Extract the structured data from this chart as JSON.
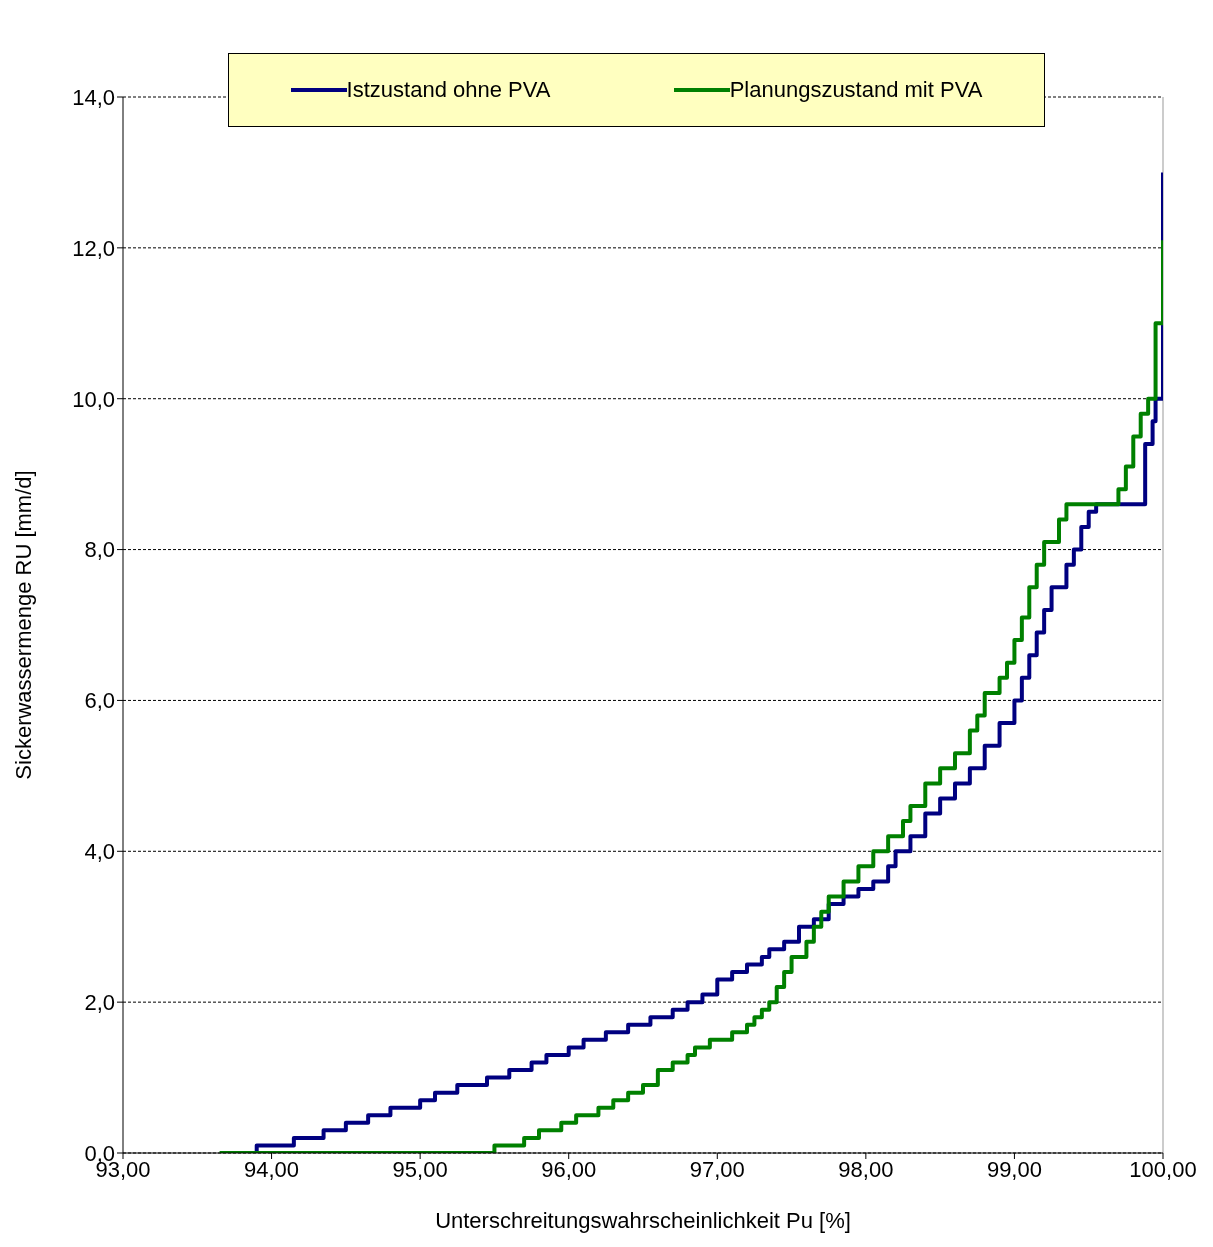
{
  "chart_data": {
    "type": "step",
    "xlabel": "Unterschreitungswahrscheinlichkeit Pu [%]",
    "ylabel": "Sickerwassermenge RU [mm/d]",
    "xlim": [
      93,
      100
    ],
    "xticks": [
      {
        "value": 93,
        "label": "93,00"
      },
      {
        "value": 94,
        "label": "94,00"
      },
      {
        "value": 95,
        "label": "95,00"
      },
      {
        "value": 96,
        "label": "96,00"
      },
      {
        "value": 97,
        "label": "97,00"
      },
      {
        "value": 98,
        "label": "98,00"
      },
      {
        "value": 99,
        "label": "99,00"
      },
      {
        "value": 100,
        "label": "100,00"
      }
    ],
    "ylim": [
      0,
      14
    ],
    "yticks": [
      {
        "value": 0,
        "label": "0,0"
      },
      {
        "value": 2,
        "label": "2,0"
      },
      {
        "value": 4,
        "label": "4,0"
      },
      {
        "value": 6,
        "label": "6,0"
      },
      {
        "value": 8,
        "label": "8,0"
      },
      {
        "value": 10,
        "label": "10,0"
      },
      {
        "value": 12,
        "label": "12,0"
      },
      {
        "value": 14,
        "label": "14,0"
      }
    ],
    "grid": "y",
    "legend": "top",
    "line_style": "solid",
    "marker": "none",
    "series": [
      {
        "name": "Istzustand ohne PVA",
        "color": "#000080",
        "x": [
          93.9,
          93.9,
          94.15,
          94.35,
          94.5,
          94.65,
          94.8,
          95.0,
          95.1,
          95.25,
          95.45,
          95.6,
          95.75,
          95.85,
          96.0,
          96.1,
          96.25,
          96.4,
          96.55,
          96.7,
          96.8,
          96.9,
          97.0,
          97.1,
          97.2,
          97.3,
          97.35,
          97.45,
          97.55,
          97.65,
          97.75,
          97.85,
          97.95,
          98.05,
          98.15,
          98.2,
          98.3,
          98.4,
          98.5,
          98.6,
          98.7,
          98.8,
          98.9,
          99.0,
          99.05,
          99.1,
          99.15,
          99.2,
          99.25,
          99.35,
          99.4,
          99.45,
          99.5,
          99.55,
          99.85,
          99.88,
          99.93,
          99.95,
          100.0
        ],
        "values": [
          0,
          0.1,
          0.2,
          0.3,
          0.4,
          0.5,
          0.6,
          0.7,
          0.8,
          0.9,
          1.0,
          1.1,
          1.2,
          1.3,
          1.4,
          1.5,
          1.6,
          1.7,
          1.8,
          1.9,
          2.0,
          2.1,
          2.3,
          2.4,
          2.5,
          2.6,
          2.7,
          2.8,
          3.0,
          3.1,
          3.3,
          3.4,
          3.5,
          3.6,
          3.8,
          4.0,
          4.2,
          4.5,
          4.7,
          4.9,
          5.1,
          5.4,
          5.7,
          6.0,
          6.3,
          6.6,
          6.9,
          7.2,
          7.5,
          7.8,
          8.0,
          8.3,
          8.5,
          8.6,
          8.6,
          9.4,
          9.7,
          10.0,
          13.0
        ]
      },
      {
        "name": "Planungszustand mit PVA",
        "color": "#008000",
        "x": [
          93.65,
          95.5,
          95.7,
          95.8,
          95.95,
          96.05,
          96.2,
          96.3,
          96.4,
          96.5,
          96.6,
          96.7,
          96.8,
          96.85,
          96.95,
          97.1,
          97.2,
          97.25,
          97.3,
          97.35,
          97.4,
          97.45,
          97.5,
          97.6,
          97.65,
          97.7,
          97.75,
          97.85,
          97.95,
          98.05,
          98.15,
          98.25,
          98.3,
          98.4,
          98.5,
          98.6,
          98.7,
          98.75,
          98.8,
          98.9,
          98.95,
          99.0,
          99.05,
          99.1,
          99.15,
          99.2,
          99.3,
          99.35,
          99.65,
          99.7,
          99.75,
          99.8,
          99.85,
          99.9,
          99.95,
          100.0
        ],
        "values": [
          0,
          0.1,
          0.2,
          0.3,
          0.4,
          0.5,
          0.6,
          0.7,
          0.8,
          0.9,
          1.1,
          1.2,
          1.3,
          1.4,
          1.5,
          1.6,
          1.7,
          1.8,
          1.9,
          2.0,
          2.2,
          2.4,
          2.6,
          2.8,
          3.0,
          3.2,
          3.4,
          3.6,
          3.8,
          4.0,
          4.2,
          4.4,
          4.6,
          4.9,
          5.1,
          5.3,
          5.6,
          5.8,
          6.1,
          6.3,
          6.5,
          6.8,
          7.1,
          7.5,
          7.8,
          8.1,
          8.4,
          8.6,
          8.6,
          8.8,
          9.1,
          9.5,
          9.8,
          10.0,
          11.0,
          12.1
        ]
      }
    ]
  }
}
